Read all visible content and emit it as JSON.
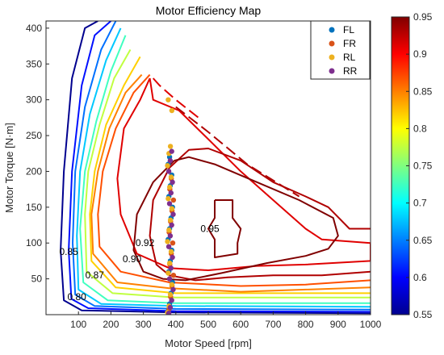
{
  "chart_data": {
    "type": "contour",
    "title": "Motor Efficiency Map",
    "xlabel": "Motor Speed [rpm]",
    "ylabel": "Motor Torque [N·m]",
    "xlim": [
      0,
      1000
    ],
    "ylim": [
      0,
      410
    ],
    "xticks": [
      100,
      200,
      300,
      400,
      500,
      600,
      700,
      800,
      900,
      1000
    ],
    "yticks": [
      50,
      100,
      150,
      200,
      250,
      300,
      350,
      400
    ],
    "colorbar": {
      "range": [
        0.55,
        0.95
      ],
      "ticks": [
        "0.55",
        "0.6",
        "0.65",
        "0.7",
        "0.75",
        "0.8",
        "0.85",
        "0.9",
        "0.95"
      ],
      "colormap": "jet"
    },
    "contour_labels": [
      {
        "text": "0.80",
        "x": 95,
        "y": 25
      },
      {
        "text": "0.85",
        "x": 70,
        "y": 88
      },
      {
        "text": "0.87",
        "x": 150,
        "y": 55
      },
      {
        "text": "0.90",
        "x": 265,
        "y": 78
      },
      {
        "text": "0.92",
        "x": 305,
        "y": 100
      },
      {
        "text": "0.95",
        "x": 505,
        "y": 120
      }
    ],
    "legend": {
      "position": "top-right",
      "entries": [
        {
          "label": "FL",
          "color": "#0072BD"
        },
        {
          "label": "FR",
          "color": "#D95319"
        },
        {
          "label": "RL",
          "color": "#EDB120"
        },
        {
          "label": "RR",
          "color": "#7E2F8E"
        }
      ]
    },
    "contours": [
      {
        "level": 0.55,
        "color": "#00008F",
        "points": [
          [
            160,
            410
          ],
          [
            120,
            400
          ],
          [
            80,
            330
          ],
          [
            55,
            200
          ],
          [
            45,
            90
          ],
          [
            55,
            20
          ],
          [
            110,
            6
          ],
          [
            400,
            3
          ],
          [
            1000,
            2
          ]
        ]
      },
      {
        "level": 0.6,
        "color": "#0010FF",
        "points": [
          [
            200,
            410
          ],
          [
            150,
            390
          ],
          [
            110,
            320
          ],
          [
            80,
            200
          ],
          [
            70,
            90
          ],
          [
            78,
            22
          ],
          [
            130,
            9
          ],
          [
            400,
            5
          ],
          [
            1000,
            4
          ]
        ]
      },
      {
        "level": 0.65,
        "color": "#0070FF",
        "points": [
          [
            215,
            410
          ],
          [
            170,
            370
          ],
          [
            120,
            290
          ],
          [
            90,
            200
          ],
          [
            82,
            100
          ],
          [
            90,
            28
          ],
          [
            150,
            12
          ],
          [
            400,
            8
          ],
          [
            1000,
            7
          ]
        ]
      },
      {
        "level": 0.7,
        "color": "#00C8FF",
        "points": [
          [
            230,
            400
          ],
          [
            185,
            355
          ],
          [
            135,
            280
          ],
          [
            105,
            200
          ],
          [
            95,
            110
          ],
          [
            100,
            35
          ],
          [
            170,
            15
          ],
          [
            400,
            12
          ],
          [
            1000,
            11
          ]
        ]
      },
      {
        "level": 0.75,
        "color": "#40FFC0",
        "points": [
          [
            245,
            390
          ],
          [
            200,
            340
          ],
          [
            155,
            270
          ],
          [
            120,
            200
          ],
          [
            105,
            120
          ],
          [
            115,
            45
          ],
          [
            190,
            20
          ],
          [
            400,
            16
          ],
          [
            1000,
            16
          ]
        ]
      },
      {
        "level": 0.8,
        "color": "#C0FF40",
        "points": [
          [
            260,
            370
          ],
          [
            210,
            330
          ],
          [
            165,
            265
          ],
          [
            130,
            200
          ],
          [
            120,
            140
          ],
          [
            125,
            60
          ],
          [
            205,
            30
          ],
          [
            400,
            24
          ],
          [
            1000,
            24
          ]
        ]
      },
      {
        "level": 0.83,
        "color": "#FFD000",
        "points": [
          [
            290,
            360
          ],
          [
            240,
            320
          ],
          [
            185,
            265
          ],
          [
            150,
            200
          ],
          [
            135,
            140
          ],
          [
            140,
            75
          ],
          [
            215,
            38
          ],
          [
            400,
            30
          ],
          [
            1000,
            30
          ]
        ]
      },
      {
        "level": 0.85,
        "color": "#FF8000",
        "points": [
          [
            295,
            335
          ],
          [
            245,
            310
          ],
          [
            195,
            260
          ],
          [
            160,
            200
          ],
          [
            140,
            140
          ],
          [
            145,
            85
          ],
          [
            220,
            45
          ],
          [
            380,
            37
          ],
          [
            600,
            32
          ],
          [
            800,
            35
          ],
          [
            1000,
            38
          ]
        ]
      },
      {
        "level": 0.87,
        "color": "#FF5000",
        "points": [
          [
            320,
            335
          ],
          [
            270,
            310
          ],
          [
            215,
            260
          ],
          [
            175,
            200
          ],
          [
            160,
            140
          ],
          [
            165,
            95
          ],
          [
            230,
            60
          ],
          [
            380,
            45
          ],
          [
            600,
            40
          ],
          [
            800,
            42
          ],
          [
            1000,
            48
          ]
        ]
      },
      {
        "level": 0.9,
        "color": "#E00000",
        "points": [
          [
            320,
            330
          ],
          [
            330,
            300
          ],
          [
            410,
            285
          ],
          [
            500,
            245
          ],
          [
            600,
            200
          ],
          [
            700,
            160
          ],
          [
            800,
            120
          ],
          [
            850,
            105
          ],
          [
            1000,
            100
          ],
          [
            1000,
            75
          ],
          [
            800,
            70
          ],
          [
            650,
            68
          ],
          [
            500,
            62
          ],
          [
            380,
            65
          ],
          [
            280,
            85
          ],
          [
            230,
            140
          ],
          [
            220,
            190
          ],
          [
            240,
            260
          ],
          [
            290,
            300
          ],
          [
            320,
            330
          ]
        ]
      },
      {
        "level": 0.92,
        "color": "#B00000",
        "points": [
          [
            1000,
            120
          ],
          [
            935,
            120
          ],
          [
            870,
            150
          ],
          [
            800,
            165
          ],
          [
            700,
            185
          ],
          [
            600,
            215
          ],
          [
            500,
            232
          ],
          [
            440,
            230
          ],
          [
            380,
            205
          ],
          [
            330,
            160
          ],
          [
            320,
            110
          ],
          [
            340,
            70
          ],
          [
            380,
            55
          ],
          [
            460,
            48
          ],
          [
            560,
            52
          ],
          [
            700,
            55
          ],
          [
            850,
            55
          ],
          [
            1000,
            60
          ]
        ]
      },
      {
        "level": 0.95,
        "color": "#800000",
        "points": [
          [
            395,
            215
          ],
          [
            330,
            185
          ],
          [
            280,
            140
          ],
          [
            270,
            90
          ],
          [
            300,
            60
          ],
          [
            360,
            50
          ],
          [
            430,
            48
          ],
          [
            540,
            58
          ],
          [
            680,
            72
          ],
          [
            800,
            82
          ],
          [
            870,
            92
          ],
          [
            900,
            110
          ],
          [
            885,
            135
          ],
          [
            780,
            160
          ],
          [
            650,
            185
          ],
          [
            520,
            210
          ],
          [
            440,
            220
          ],
          [
            395,
            215
          ]
        ]
      },
      {
        "level": 0.95,
        "color": "#800000",
        "points": [
          [
            520,
            160
          ],
          [
            575,
            160
          ],
          [
            575,
            135
          ],
          [
            600,
            120
          ],
          [
            590,
            100
          ],
          [
            590,
            85
          ],
          [
            520,
            80
          ],
          [
            520,
            105
          ],
          [
            500,
            120
          ],
          [
            520,
            135
          ],
          [
            520,
            160
          ]
        ]
      }
    ],
    "dashed_segments": [
      {
        "color": "#E00000",
        "points": [
          [
            330,
            330
          ],
          [
            350,
            320
          ],
          [
            400,
            300
          ],
          [
            470,
            275
          ]
        ]
      },
      {
        "color": "#B00000",
        "points": [
          [
            400,
            290
          ],
          [
            500,
            255
          ],
          [
            620,
            210
          ],
          [
            780,
            165
          ]
        ]
      }
    ],
    "series": [
      {
        "name": "FL",
        "color": "#0072BD",
        "x": 383,
        "y": [
          5,
          15,
          30,
          45,
          60,
          75,
          90,
          105,
          120,
          135,
          150,
          165,
          180,
          195,
          210,
          220
        ]
      },
      {
        "name": "FR",
        "color": "#D95319",
        "x": 386,
        "y": [
          8,
          25,
          40,
          55,
          70,
          85,
          100,
          115,
          130,
          145,
          160,
          175,
          190
        ]
      },
      {
        "name": "RL",
        "color": "#EDB120",
        "x": 381,
        "y": [
          3,
          12,
          28,
          42,
          58,
          72,
          88,
          102,
          118,
          132,
          148,
          162,
          178,
          192,
          208,
          225,
          235,
          285,
          300
        ]
      },
      {
        "name": "RR",
        "color": "#7E2F8E",
        "x": 385,
        "y": [
          2,
          10,
          20,
          35,
          50,
          65,
          80,
          95,
          110,
          125,
          140,
          155,
          170,
          185,
          200,
          215,
          228
        ]
      }
    ]
  }
}
